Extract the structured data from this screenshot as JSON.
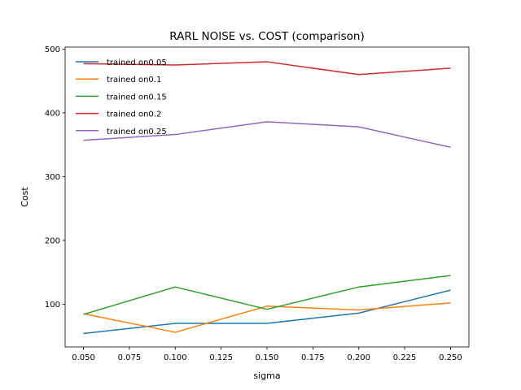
{
  "chart_data": {
    "type": "line",
    "title": "RARL NOISE vs. COST (comparison)",
    "xlabel": "sigma",
    "ylabel": "Cost",
    "xlim": [
      0.04,
      0.26
    ],
    "ylim": [
      33,
      503
    ],
    "xticks": [
      "0.050",
      "0.075",
      "0.100",
      "0.125",
      "0.150",
      "0.175",
      "0.200",
      "0.225",
      "0.250"
    ],
    "xtick_values": [
      0.05,
      0.075,
      0.1,
      0.125,
      0.15,
      0.175,
      0.2,
      0.225,
      0.25
    ],
    "yticks": [
      "100",
      "200",
      "300",
      "400",
      "500"
    ],
    "ytick_values": [
      100,
      200,
      300,
      400,
      500
    ],
    "grid": false,
    "legend_position": "top-left",
    "x": [
      0.05,
      0.1,
      0.15,
      0.2,
      0.25
    ],
    "series": [
      {
        "name": "trained on0.05",
        "color": "#1f77b4",
        "values": [
          54,
          70,
          70,
          86,
          122
        ]
      },
      {
        "name": "trained on0.1",
        "color": "#ff7f0e",
        "values": [
          85,
          56,
          97,
          91,
          102
        ]
      },
      {
        "name": "trained on0.15",
        "color": "#2ca02c",
        "values": [
          84,
          127,
          92,
          127,
          145
        ]
      },
      {
        "name": "trained on0.2",
        "color": "#d62728",
        "values": [
          477,
          475,
          480,
          460,
          470
        ]
      },
      {
        "name": "trained on0.25",
        "color": "#9467bd",
        "values": [
          357,
          366,
          386,
          378,
          346
        ]
      }
    ]
  }
}
